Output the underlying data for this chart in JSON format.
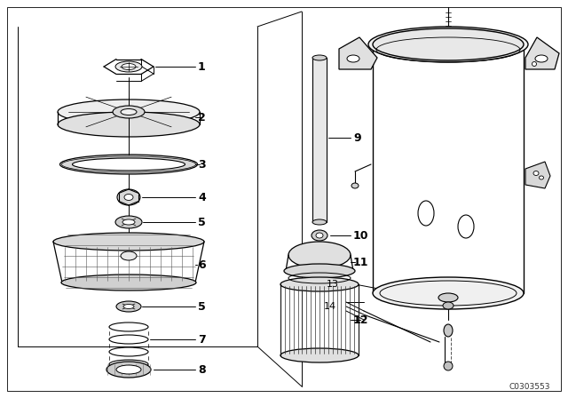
{
  "bg_color": "#ffffff",
  "line_color": "#000000",
  "fig_width": 6.4,
  "fig_height": 4.48,
  "dpi": 100,
  "watermark": "C0303553"
}
